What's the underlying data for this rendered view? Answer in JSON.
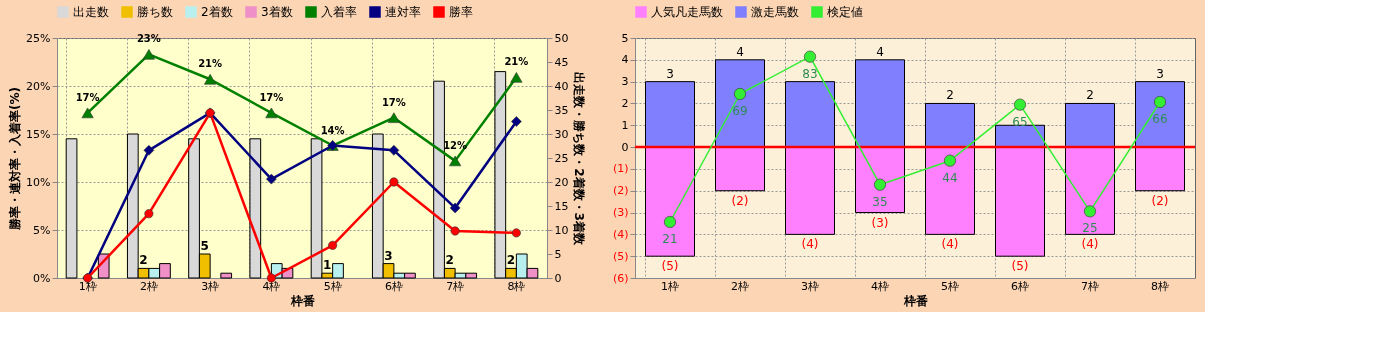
{
  "chart_data": [
    {
      "type": "bar",
      "categories": [
        "1枠",
        "2枠",
        "3枠",
        "4枠",
        "5枠",
        "6枠",
        "7枠",
        "8枠"
      ],
      "xlabel": "枠番",
      "ylabel": "勝率・連対率・入着率(%)",
      "y2label": "出走数・勝ち数・2着数・3着数",
      "ylim": [
        0,
        25
      ],
      "yticks": [
        {
          "value": 0,
          "label": "0%"
        },
        {
          "value": 5,
          "label": "5%"
        },
        {
          "value": 10,
          "label": "10%"
        },
        {
          "value": 15,
          "label": "15%"
        },
        {
          "value": 20,
          "label": "20%"
        },
        {
          "value": 25,
          "label": "25%"
        }
      ],
      "y2lim": [
        0,
        50
      ],
      "y2ticks": [
        0,
        5,
        10,
        15,
        20,
        25,
        30,
        35,
        40,
        45,
        50
      ],
      "grid": true,
      "legend": "top",
      "series": [
        {
          "name": "出走数",
          "axis": "y2",
          "color": "#d9d9d9",
          "values": [
            29,
            30,
            29,
            29,
            29,
            30,
            41,
            43
          ]
        },
        {
          "name": "勝ち数",
          "axis": "y2",
          "color": "#f0c000",
          "values": [
            0,
            2,
            5,
            0,
            1,
            3,
            2,
            2
          ],
          "value_labels": [
            null,
            "2",
            "5",
            null,
            "1",
            "3",
            "2",
            "2"
          ]
        },
        {
          "name": "2着数",
          "axis": "y2",
          "color": "#b8f0f0",
          "values": [
            0,
            2,
            0,
            3,
            3,
            1,
            1,
            5
          ]
        },
        {
          "name": "3着数",
          "axis": "y2",
          "color": "#f090c8",
          "values": [
            5,
            3,
            1,
            2,
            0,
            1,
            1,
            2
          ]
        },
        {
          "name": "入着率",
          "type": "line",
          "marker": "triangle",
          "color": "#008000",
          "values": [
            17.2,
            23.3,
            20.7,
            17.2,
            13.8,
            16.7,
            12.2,
            20.9
          ],
          "value_labels": [
            "17%",
            "23%",
            "21%",
            "17%",
            "14%",
            "17%",
            "12%",
            "21%"
          ]
        },
        {
          "name": "連対率",
          "type": "line",
          "marker": "diamond",
          "color": "#000080",
          "values": [
            0,
            13.3,
            17.2,
            10.3,
            13.8,
            13.3,
            7.3,
            16.3
          ]
        },
        {
          "name": "勝率",
          "type": "line",
          "marker": "circle",
          "color": "#ff0000",
          "values": [
            0,
            6.7,
            17.2,
            0,
            3.4,
            10.0,
            4.9,
            4.7
          ]
        }
      ]
    },
    {
      "type": "bar",
      "categories": [
        "1枠",
        "2枠",
        "3枠",
        "4枠",
        "5枠",
        "6枠",
        "7枠",
        "8枠"
      ],
      "xlabel": "枠番",
      "ylim": [
        -6,
        5
      ],
      "yticks": [
        {
          "value": -6,
          "label": "(6)"
        },
        {
          "value": -5,
          "label": "(5)"
        },
        {
          "value": -4,
          "label": "(4)"
        },
        {
          "value": -3,
          "label": "(3)"
        },
        {
          "value": -2,
          "label": "(2)"
        },
        {
          "value": -1,
          "label": "(1)"
        },
        0,
        1,
        2,
        3,
        4,
        5
      ],
      "y2lim": [
        0,
        90
      ],
      "stacked": true,
      "grid": true,
      "legend": "top",
      "ref_lines": [
        {
          "axis": "y",
          "value": 0,
          "color": "#ff0000"
        }
      ],
      "series": [
        {
          "name": "人気凡走馬数",
          "color": "#ff80ff",
          "values": [
            -5,
            -2,
            -4,
            -3,
            -4,
            -5,
            -4,
            -2
          ],
          "value_labels": [
            "(5)",
            "(2)",
            "(4)",
            "(3)",
            "(4)",
            "(5)",
            "(4)",
            "(2)"
          ]
        },
        {
          "name": "激走馬数",
          "color": "#8080ff",
          "values": [
            3,
            4,
            3,
            4,
            2,
            1,
            2,
            3
          ],
          "value_labels": [
            "3",
            "4",
            null,
            "4",
            "2",
            null,
            "2",
            "3"
          ]
        },
        {
          "name": "検定値",
          "type": "line",
          "axis": "y2",
          "marker": "circle",
          "color": "#33ee33",
          "values": [
            21,
            69,
            83,
            35,
            44,
            65,
            25,
            66
          ],
          "value_labels": [
            "21",
            "69",
            "83",
            "35",
            "44",
            "65",
            "25",
            "66"
          ]
        }
      ]
    }
  ]
}
